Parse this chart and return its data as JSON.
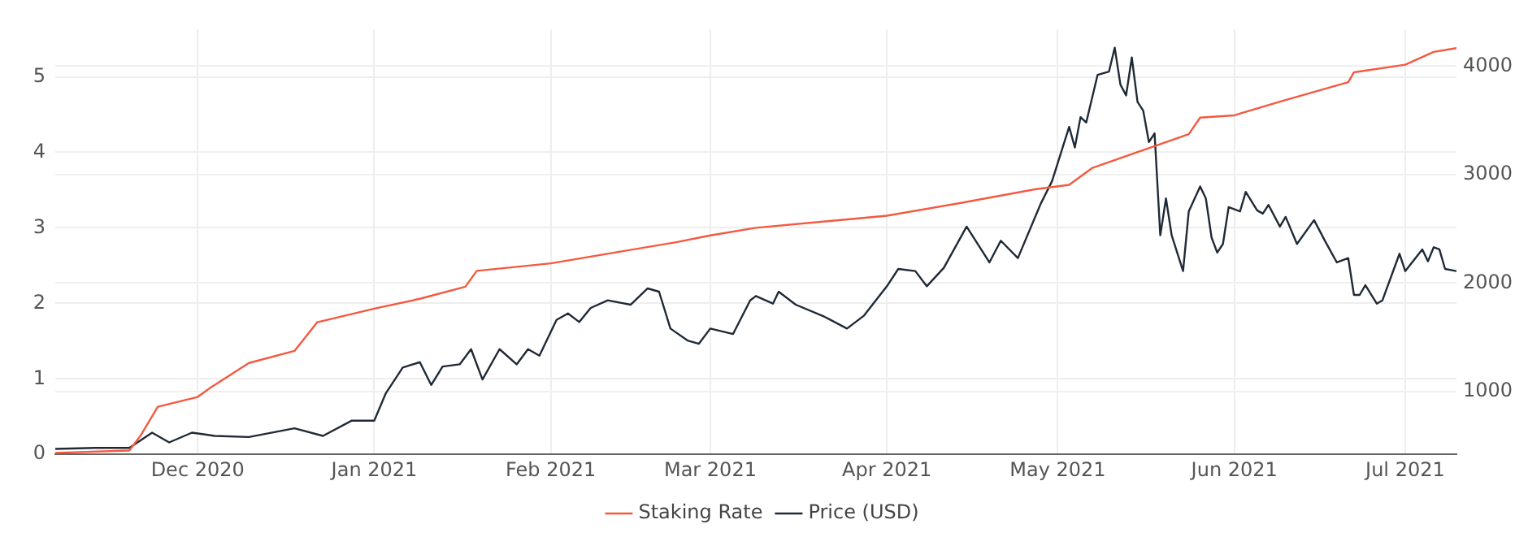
{
  "chart_data": {
    "type": "line",
    "xlim": [
      "2020-11-06",
      "2021-07-10"
    ],
    "xticks": [
      {
        "value": "2020-12-01",
        "label": "Dec 2020"
      },
      {
        "value": "2021-01-01",
        "label": "Jan 2021"
      },
      {
        "value": "2021-02-01",
        "label": "Feb 2021"
      },
      {
        "value": "2021-03-01",
        "label": "Mar 2021"
      },
      {
        "value": "2021-04-01",
        "label": "Apr 2021"
      },
      {
        "value": "2021-05-01",
        "label": "May 2021"
      },
      {
        "value": "2021-06-01",
        "label": "Jun 2021"
      },
      {
        "value": "2021-07-01",
        "label": "Jul 2021"
      }
    ],
    "ylim": [
      0,
      5.63
    ],
    "yticks": [
      0,
      1,
      2,
      3,
      4,
      5
    ],
    "y2lim": [
      420,
      4340
    ],
    "y2ticks": [
      1000,
      2000,
      3000,
      4000
    ],
    "grid": true,
    "legend": "bottom",
    "marker": "none",
    "line_style": "solid",
    "series": [
      {
        "name": "Staking Rate",
        "color": "#f4593f",
        "x": [
          "2020-11-06",
          "2020-11-19",
          "2020-11-21",
          "2020-11-24",
          "2020-12-01",
          "2020-12-03",
          "2020-12-10",
          "2020-12-18",
          "2020-12-22",
          "2021-01-01",
          "2021-01-09",
          "2021-01-17",
          "2021-01-19",
          "2021-02-01",
          "2021-02-12",
          "2021-02-23",
          "2021-03-01",
          "2021-03-09",
          "2021-04-01",
          "2021-04-14",
          "2021-04-27",
          "2021-05-03",
          "2021-05-07",
          "2021-05-13",
          "2021-05-24",
          "2021-05-26",
          "2021-06-01",
          "2021-06-09",
          "2021-06-21",
          "2021-06-22",
          "2021-07-01",
          "2021-07-06",
          "2021-07-10"
        ],
        "values": [
          0.02,
          0.05,
          0.25,
          0.63,
          0.76,
          0.87,
          1.21,
          1.37,
          1.75,
          1.93,
          2.06,
          2.22,
          2.43,
          2.53,
          2.67,
          2.81,
          2.9,
          3.0,
          3.16,
          3.33,
          3.51,
          3.57,
          3.79,
          3.95,
          4.24,
          4.46,
          4.49,
          4.67,
          4.93,
          5.06,
          5.16,
          5.33,
          5.38
        ]
      },
      {
        "name": "Price (USD)",
        "color": "#1f2a36",
        "axis": "y2",
        "x": [
          "2020-11-06",
          "2020-11-13",
          "2020-11-19",
          "2020-11-23",
          "2020-11-26",
          "2020-11-30",
          "2020-12-04",
          "2020-12-10",
          "2020-12-18",
          "2020-12-23",
          "2020-12-28",
          "2021-01-01",
          "2021-01-03",
          "2021-01-06",
          "2021-01-09",
          "2021-01-11",
          "2021-01-13",
          "2021-01-16",
          "2021-01-18",
          "2021-01-20",
          "2021-01-23",
          "2021-01-26",
          "2021-01-28",
          "2021-01-30",
          "2021-02-02",
          "2021-02-04",
          "2021-02-06",
          "2021-02-08",
          "2021-02-11",
          "2021-02-15",
          "2021-02-18",
          "2021-02-20",
          "2021-02-22",
          "2021-02-25",
          "2021-02-27",
          "2021-03-01",
          "2021-03-05",
          "2021-03-08",
          "2021-03-09",
          "2021-03-12",
          "2021-03-13",
          "2021-03-16",
          "2021-03-21",
          "2021-03-25",
          "2021-03-28",
          "2021-04-01",
          "2021-04-03",
          "2021-04-06",
          "2021-04-08",
          "2021-04-11",
          "2021-04-15",
          "2021-04-19",
          "2021-04-21",
          "2021-04-24",
          "2021-04-28",
          "2021-04-30",
          "2021-05-03",
          "2021-05-04",
          "2021-05-05",
          "2021-05-06",
          "2021-05-08",
          "2021-05-10",
          "2021-05-11",
          "2021-05-12",
          "2021-05-13",
          "2021-05-14",
          "2021-05-15",
          "2021-05-16",
          "2021-05-17",
          "2021-05-18",
          "2021-05-19",
          "2021-05-20",
          "2021-05-21",
          "2021-05-23",
          "2021-05-24",
          "2021-05-26",
          "2021-05-27",
          "2021-05-28",
          "2021-05-29",
          "2021-05-30",
          "2021-05-31",
          "2021-06-02",
          "2021-06-03",
          "2021-06-05",
          "2021-06-06",
          "2021-06-07",
          "2021-06-09",
          "2021-06-10",
          "2021-06-12",
          "2021-06-15",
          "2021-06-17",
          "2021-06-19",
          "2021-06-21",
          "2021-06-22",
          "2021-06-23",
          "2021-06-24",
          "2021-06-26",
          "2021-06-27",
          "2021-06-30",
          "2021-07-01",
          "2021-07-04",
          "2021-07-05",
          "2021-07-06",
          "2021-07-07",
          "2021-07-08",
          "2021-07-10"
        ],
        "values": [
          470,
          480,
          480,
          620,
          530,
          620,
          590,
          580,
          660,
          590,
          730,
          730,
          980,
          1220,
          1270,
          1060,
          1230,
          1250,
          1390,
          1110,
          1390,
          1250,
          1390,
          1330,
          1660,
          1720,
          1640,
          1770,
          1840,
          1800,
          1950,
          1920,
          1580,
          1470,
          1440,
          1580,
          1530,
          1840,
          1880,
          1810,
          1920,
          1800,
          1690,
          1580,
          1700,
          1970,
          2130,
          2110,
          1970,
          2140,
          2520,
          2190,
          2390,
          2230,
          2730,
          2940,
          3440,
          3250,
          3530,
          3480,
          3920,
          3950,
          4170,
          3830,
          3730,
          4080,
          3670,
          3590,
          3300,
          3380,
          2440,
          2780,
          2440,
          2110,
          2660,
          2890,
          2780,
          2420,
          2280,
          2360,
          2700,
          2660,
          2840,
          2670,
          2640,
          2720,
          2520,
          2610,
          2360,
          2580,
          2380,
          2190,
          2230,
          1890,
          1890,
          1980,
          1810,
          1840,
          2270,
          2110,
          2310,
          2200,
          2330,
          2310,
          2130,
          2110
        ]
      }
    ]
  }
}
